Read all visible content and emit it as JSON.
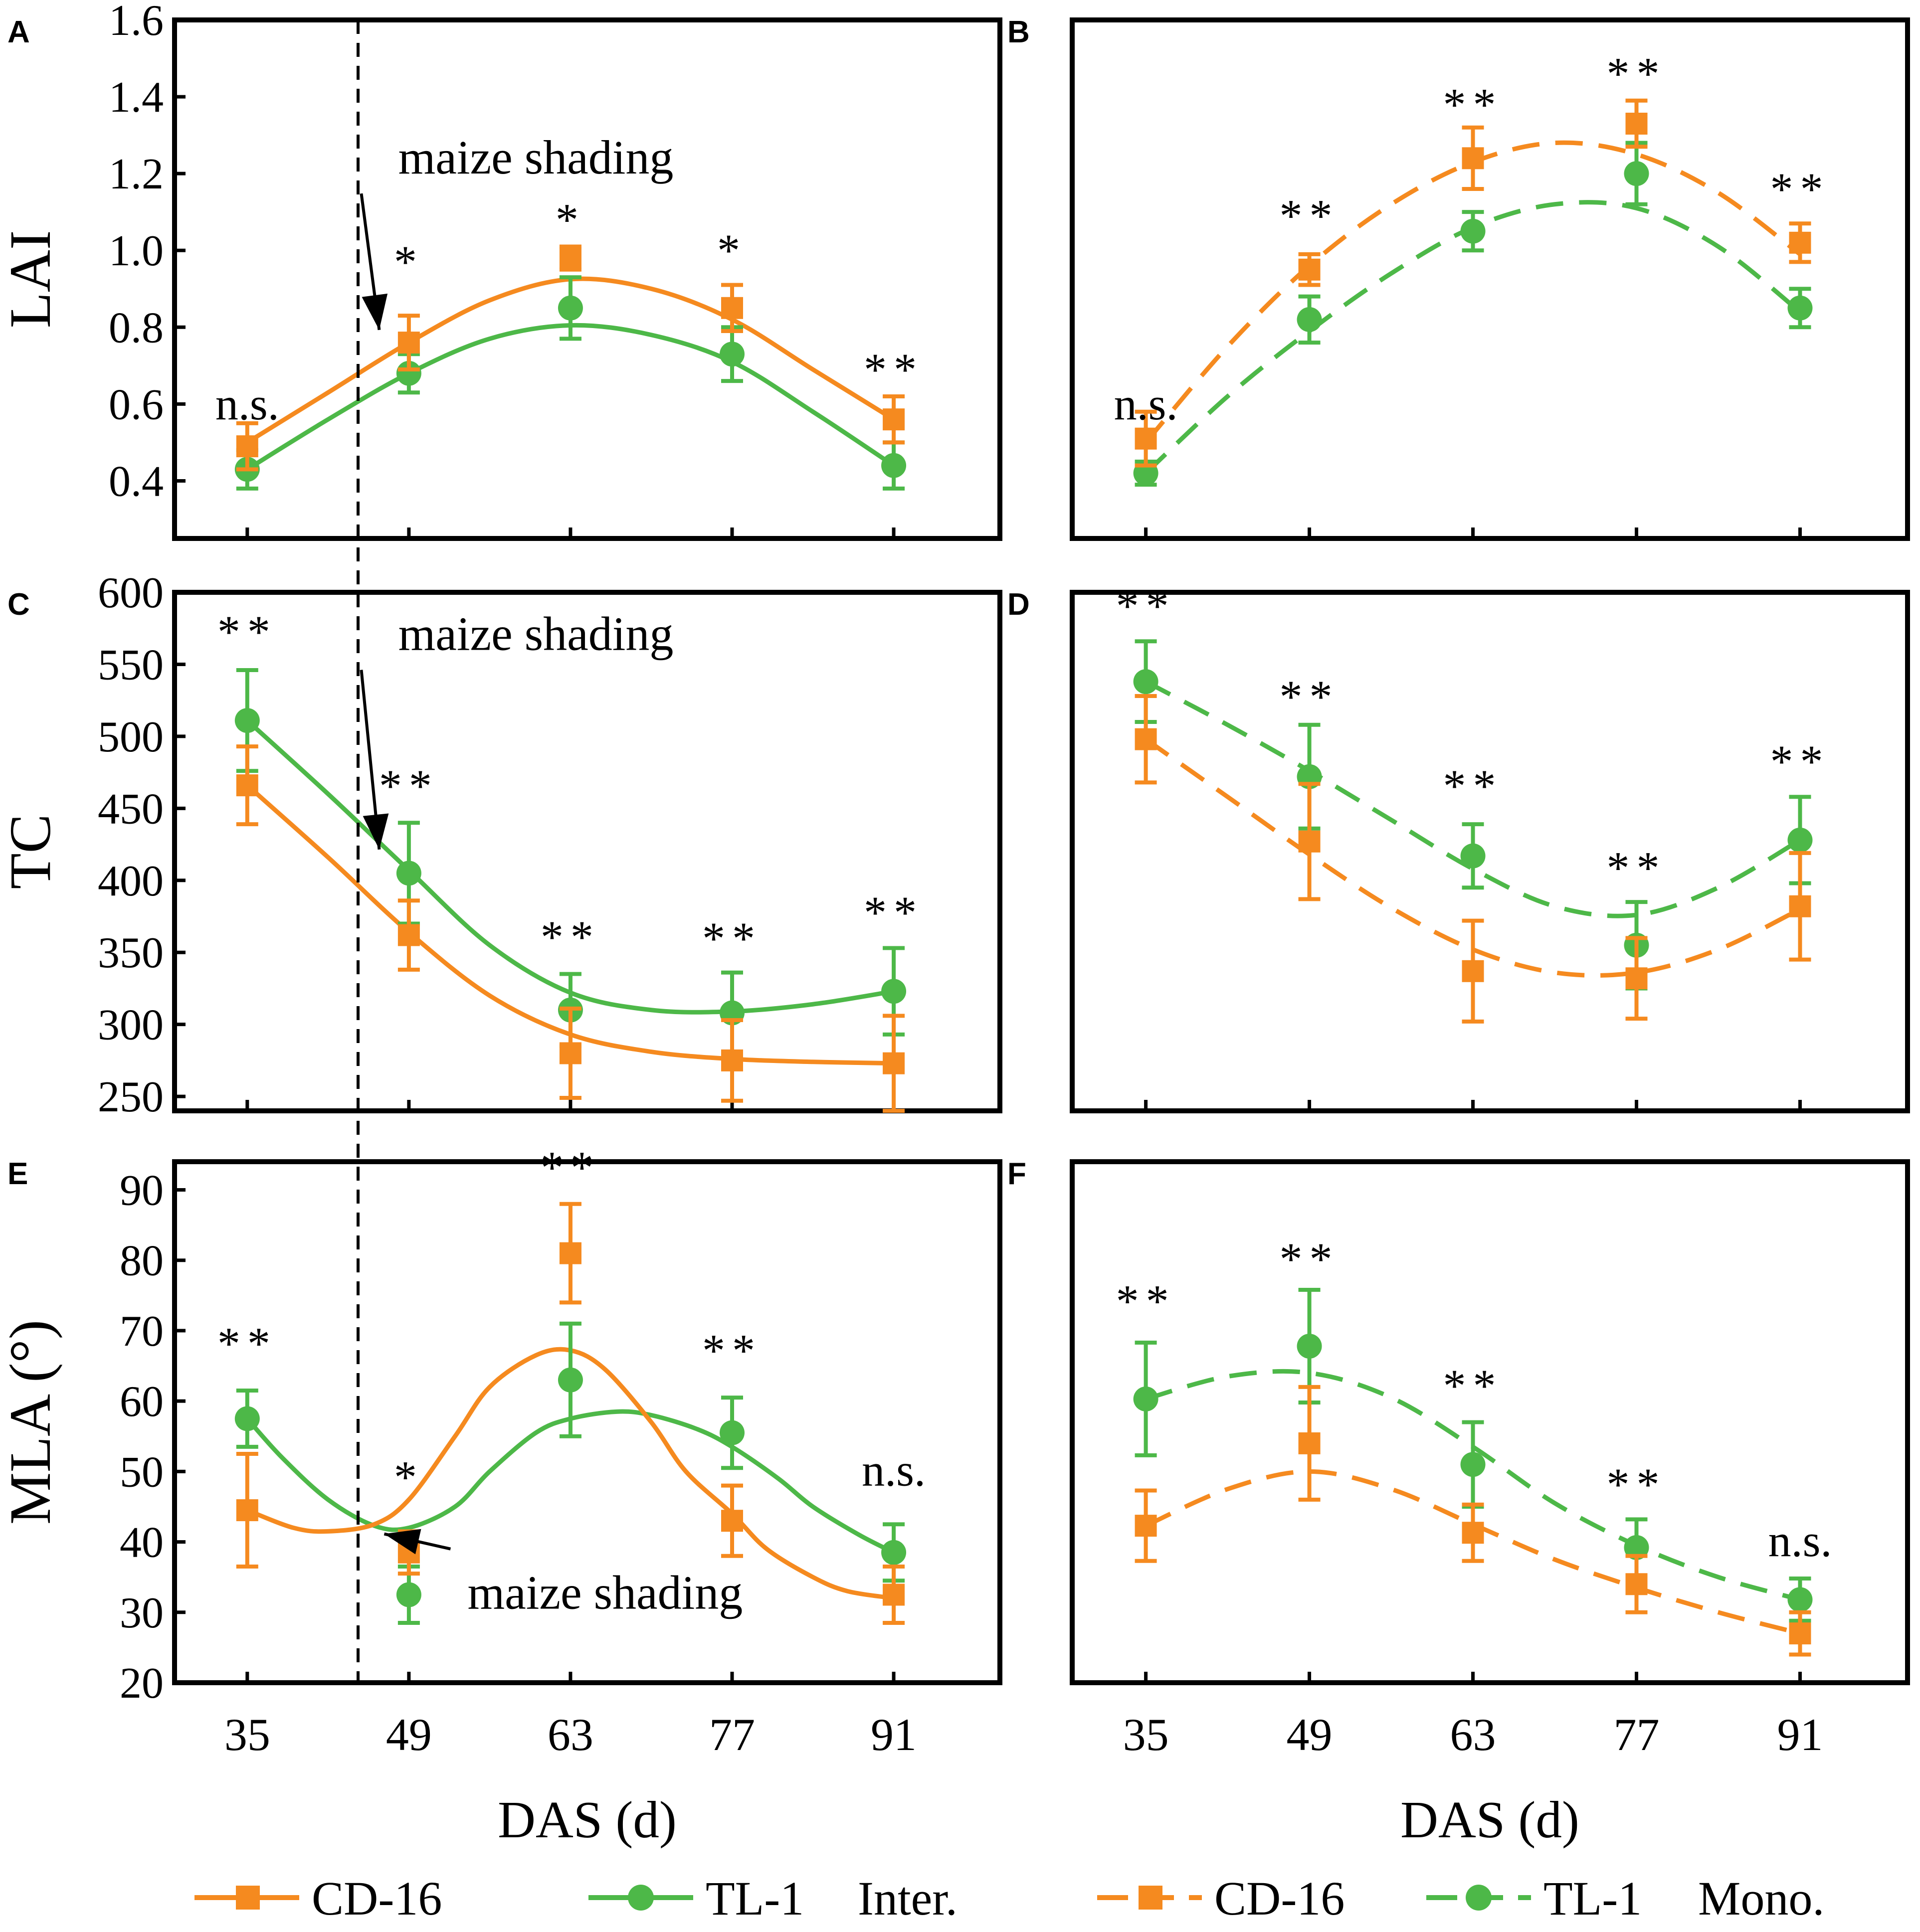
{
  "colors": {
    "cd16": "#F58A1F",
    "tl1": "#4DB848",
    "axis": "#000000"
  },
  "legend": {
    "inter": {
      "cd16_label": "CD-16",
      "tl1_label": "TL-1",
      "group_label": "Inter."
    },
    "mono": {
      "cd16_label": "CD-16",
      "tl1_label": "TL-1",
      "group_label": "Mono."
    }
  },
  "annotation_label": "maize shading",
  "chart_data": [
    {
      "panel": "A",
      "type": "line",
      "mode": "Inter.",
      "line_style": "solid",
      "ylabel": "LAI",
      "xlabel": "",
      "ylim": [
        0.25,
        1.6
      ],
      "yticks": [
        0.4,
        0.6,
        0.8,
        1.0,
        1.2,
        1.4,
        1.6
      ],
      "ytick_labels": [
        "0.4",
        "0.6",
        "0.8",
        "1.0",
        "1.2",
        "1.4",
        "1.6"
      ],
      "x": [
        35,
        49,
        63,
        77,
        91
      ],
      "series": [
        {
          "name": "CD-16",
          "values": [
            0.49,
            0.76,
            0.98,
            0.85,
            0.56
          ],
          "errors": [
            0.06,
            0.07,
            0.03,
            0.06,
            0.06
          ],
          "fit": [
            [
              35,
              0.5
            ],
            [
              42,
              0.63
            ],
            [
              49,
              0.76
            ],
            [
              56,
              0.87
            ],
            [
              63,
              0.925
            ],
            [
              70,
              0.9
            ],
            [
              77,
              0.82
            ],
            [
              84,
              0.69
            ],
            [
              91,
              0.56
            ]
          ]
        },
        {
          "name": "TL-1",
          "values": [
            0.43,
            0.68,
            0.85,
            0.73,
            0.44
          ],
          "errors": [
            0.05,
            0.05,
            0.08,
            0.07,
            0.06
          ],
          "fit": [
            [
              35,
              0.43
            ],
            [
              42,
              0.56
            ],
            [
              49,
              0.68
            ],
            [
              56,
              0.77
            ],
            [
              63,
              0.805
            ],
            [
              70,
              0.78
            ],
            [
              77,
              0.71
            ],
            [
              84,
              0.58
            ],
            [
              91,
              0.44
            ]
          ]
        }
      ],
      "significance": [
        {
          "x": 35,
          "label": "n.s.",
          "y": 0.56
        },
        {
          "x": 49,
          "label": "*",
          "y": 0.93
        },
        {
          "x": 63,
          "label": "*",
          "y": 1.04
        },
        {
          "x": 77,
          "label": "*",
          "y": 0.96
        },
        {
          "x": 91,
          "label": "**",
          "y": 0.65
        }
      ],
      "annotation": {
        "text": "maize shading",
        "x": 60,
        "y": 1.2,
        "arrow_to_x": 46,
        "arrow_to_y": 0.78
      }
    },
    {
      "panel": "B",
      "type": "line",
      "mode": "Mono.",
      "line_style": "dashed",
      "ylabel": "",
      "xlabel": "",
      "ylim": [
        0.25,
        1.6
      ],
      "x": [
        35,
        49,
        63,
        77,
        91
      ],
      "series": [
        {
          "name": "CD-16",
          "values": [
            0.51,
            0.95,
            1.24,
            1.33,
            1.02
          ],
          "errors": [
            0.07,
            0.04,
            0.08,
            0.06,
            0.05
          ],
          "fit": [
            [
              35,
              0.5
            ],
            [
              42,
              0.75
            ],
            [
              49,
              0.96
            ],
            [
              56,
              1.12
            ],
            [
              63,
              1.23
            ],
            [
              70,
              1.28
            ],
            [
              77,
              1.25
            ],
            [
              84,
              1.15
            ],
            [
              91,
              0.99
            ]
          ]
        },
        {
          "name": "TL-1",
          "values": [
            0.42,
            0.82,
            1.05,
            1.2,
            0.85
          ],
          "errors": [
            0.03,
            0.06,
            0.05,
            0.08,
            0.05
          ],
          "fit": [
            [
              35,
              0.42
            ],
            [
              42,
              0.62
            ],
            [
              49,
              0.79
            ],
            [
              56,
              0.94
            ],
            [
              63,
              1.06
            ],
            [
              70,
              1.12
            ],
            [
              77,
              1.11
            ],
            [
              84,
              1.01
            ],
            [
              91,
              0.84
            ]
          ]
        }
      ],
      "significance": [
        {
          "x": 35,
          "label": "n.s.",
          "y": 0.56
        },
        {
          "x": 49,
          "label": "**",
          "y": 1.05
        },
        {
          "x": 63,
          "label": "**",
          "y": 1.34
        },
        {
          "x": 77,
          "label": "**",
          "y": 1.42
        },
        {
          "x": 91,
          "label": "**",
          "y": 1.12
        }
      ]
    },
    {
      "panel": "C",
      "type": "line",
      "mode": "Inter.",
      "line_style": "solid",
      "ylabel": "TC",
      "xlabel": "",
      "ylim": [
        240,
        600
      ],
      "yticks": [
        250,
        300,
        350,
        400,
        450,
        500,
        550,
        600
      ],
      "ytick_labels": [
        "250",
        "300",
        "350",
        "400",
        "450",
        "500",
        "550",
        "600"
      ],
      "x": [
        35,
        49,
        63,
        77,
        91
      ],
      "series": [
        {
          "name": "CD-16",
          "values": [
            466,
            362,
            280,
            275,
            273
          ],
          "errors": [
            27,
            24,
            31,
            28,
            33
          ],
          "fit": [
            [
              35,
              466
            ],
            [
              42,
              416
            ],
            [
              49,
              364
            ],
            [
              56,
              320
            ],
            [
              63,
              293
            ],
            [
              70,
              281
            ],
            [
              77,
              276
            ],
            [
              84,
              274
            ],
            [
              91,
              273
            ]
          ]
        },
        {
          "name": "TL-1",
          "values": [
            511,
            405,
            310,
            308,
            323
          ],
          "errors": [
            35,
            35,
            25,
            28,
            30
          ],
          "fit": [
            [
              35,
              511
            ],
            [
              42,
              460
            ],
            [
              49,
              407
            ],
            [
              56,
              355
            ],
            [
              63,
              322
            ],
            [
              70,
              310
            ],
            [
              77,
              309
            ],
            [
              84,
              314
            ],
            [
              91,
              323
            ]
          ]
        }
      ],
      "significance": [
        {
          "x": 35,
          "label": "**",
          "y": 562
        },
        {
          "x": 49,
          "label": "**",
          "y": 455
        },
        {
          "x": 63,
          "label": "**",
          "y": 350
        },
        {
          "x": 77,
          "label": "**",
          "y": 349
        },
        {
          "x": 91,
          "label": "**",
          "y": 367
        }
      ],
      "annotation": {
        "text": "maize shading",
        "x": 60,
        "y": 560,
        "arrow_to_x": 46,
        "arrow_to_y": 418
      }
    },
    {
      "panel": "D",
      "type": "line",
      "mode": "Mono.",
      "line_style": "dashed",
      "ylabel": "",
      "xlabel": "",
      "ylim": [
        240,
        600
      ],
      "x": [
        35,
        49,
        63,
        77,
        91
      ],
      "series": [
        {
          "name": "CD-16",
          "values": [
            498,
            427,
            337,
            332,
            382
          ],
          "errors": [
            30,
            40,
            35,
            28,
            37
          ],
          "fit": [
            [
              35,
              498
            ],
            [
              42,
              458
            ],
            [
              49,
              418
            ],
            [
              56,
              381
            ],
            [
              63,
              352
            ],
            [
              70,
              336
            ],
            [
              77,
              336
            ],
            [
              84,
              352
            ],
            [
              91,
              380
            ]
          ]
        },
        {
          "name": "TL-1",
          "values": [
            538,
            472,
            417,
            355,
            428
          ],
          "errors": [
            28,
            36,
            22,
            30,
            30
          ],
          "fit": [
            [
              35,
              538
            ],
            [
              42,
              508
            ],
            [
              49,
              476
            ],
            [
              56,
              442
            ],
            [
              63,
              408
            ],
            [
              70,
              382
            ],
            [
              77,
              376
            ],
            [
              84,
              395
            ],
            [
              91,
              428
            ]
          ]
        }
      ],
      "significance": [
        {
          "x": 35,
          "label": "**",
          "y": 580
        },
        {
          "x": 49,
          "label": "**",
          "y": 517
        },
        {
          "x": 63,
          "label": "**",
          "y": 455
        },
        {
          "x": 77,
          "label": "**",
          "y": 398
        },
        {
          "x": 91,
          "label": "**",
          "y": 472
        }
      ]
    },
    {
      "panel": "E",
      "type": "line",
      "mode": "Inter.",
      "line_style": "solid",
      "ylabel": "MLA (°)",
      "xlabel": "DAS (d)",
      "ylim": [
        20,
        94
      ],
      "yticks": [
        20,
        30,
        40,
        50,
        60,
        70,
        80,
        90
      ],
      "ytick_labels": [
        "20",
        "30",
        "40",
        "50",
        "60",
        "70",
        "80",
        "90"
      ],
      "x": [
        35,
        49,
        63,
        77,
        91
      ],
      "xtick_labels": [
        "35",
        "49",
        "63",
        "77",
        "91"
      ],
      "series": [
        {
          "name": "CD-16",
          "values": [
            44.5,
            38.5,
            81,
            43,
            32.5
          ],
          "errors": [
            8,
            3,
            7,
            5,
            4
          ],
          "fit": [
            [
              35,
              44.5
            ],
            [
              39,
              42
            ],
            [
              42,
              41.5
            ],
            [
              46,
              42.5
            ],
            [
              49,
              46
            ],
            [
              53,
              55
            ],
            [
              56,
              62
            ],
            [
              60,
              66.5
            ],
            [
              63,
              67.2
            ],
            [
              66,
              64.5
            ],
            [
              70,
              57
            ],
            [
              73,
              50
            ],
            [
              77,
              44
            ],
            [
              80,
              39
            ],
            [
              84,
              35
            ],
            [
              87,
              33
            ],
            [
              91,
              32
            ]
          ]
        },
        {
          "name": "TL-1",
          "values": [
            57.5,
            32.5,
            63,
            55.5,
            38.5
          ],
          "errors": [
            4,
            4,
            8,
            5,
            4
          ],
          "fit": [
            [
              35,
              57.5
            ],
            [
              38,
              52
            ],
            [
              42,
              46
            ],
            [
              46,
              42.3
            ],
            [
              49,
              42
            ],
            [
              53,
              45
            ],
            [
              56,
              50
            ],
            [
              60,
              55.5
            ],
            [
              63,
              57.5
            ],
            [
              67,
              58.5
            ],
            [
              70,
              58
            ],
            [
              74,
              56
            ],
            [
              77,
              53.5
            ],
            [
              81,
              49
            ],
            [
              84,
              45
            ],
            [
              88,
              41
            ],
            [
              91,
              38.5
            ]
          ]
        }
      ],
      "significance": [
        {
          "x": 35,
          "label": "**",
          "y": 66
        },
        {
          "x": 49,
          "label": "*",
          "y": 47
        },
        {
          "x": 63,
          "label": "**",
          "y": 91
        },
        {
          "x": 77,
          "label": "**",
          "y": 65
        },
        {
          "x": 91,
          "label": "n.s.",
          "y": 48
        }
      ],
      "annotation": {
        "text": "maize shading",
        "x": 66,
        "y": 30.5,
        "arrow_to_x": 46,
        "arrow_to_y": 41.7
      }
    },
    {
      "panel": "F",
      "type": "line",
      "mode": "Mono.",
      "line_style": "dashed",
      "ylabel": "",
      "xlabel": "DAS (d)",
      "ylim": [
        20,
        94
      ],
      "x": [
        35,
        49,
        63,
        77,
        91
      ],
      "xtick_labels": [
        "35",
        "49",
        "63",
        "77",
        "91"
      ],
      "series": [
        {
          "name": "CD-16",
          "values": [
            42.3,
            54,
            41.3,
            34,
            27
          ],
          "errors": [
            5,
            8,
            4,
            4,
            3
          ],
          "fit": [
            [
              35,
              42.3
            ],
            [
              42,
              47.5
            ],
            [
              49,
              50
            ],
            [
              56,
              47.5
            ],
            [
              63,
              42.5
            ],
            [
              70,
              37.5
            ],
            [
              77,
              33.5
            ],
            [
              84,
              30
            ],
            [
              91,
              27
            ]
          ]
        },
        {
          "name": "TL-1",
          "values": [
            60.3,
            67.8,
            51,
            39.2,
            31.8
          ],
          "errors": [
            8,
            8,
            6,
            4,
            3
          ],
          "fit": [
            [
              35,
              60.3
            ],
            [
              42,
              63.5
            ],
            [
              49,
              64
            ],
            [
              56,
              60.5
            ],
            [
              63,
              53.5
            ],
            [
              70,
              45.5
            ],
            [
              77,
              39.5
            ],
            [
              84,
              35
            ],
            [
              91,
              31.8
            ]
          ]
        }
      ],
      "significance": [
        {
          "x": 35,
          "label": "**",
          "y": 72
        },
        {
          "x": 49,
          "label": "**",
          "y": 78
        },
        {
          "x": 63,
          "label": "**",
          "y": 60
        },
        {
          "x": 77,
          "label": "**",
          "y": 46
        },
        {
          "x": 91,
          "label": "n.s.",
          "y": 38
        }
      ]
    }
  ]
}
